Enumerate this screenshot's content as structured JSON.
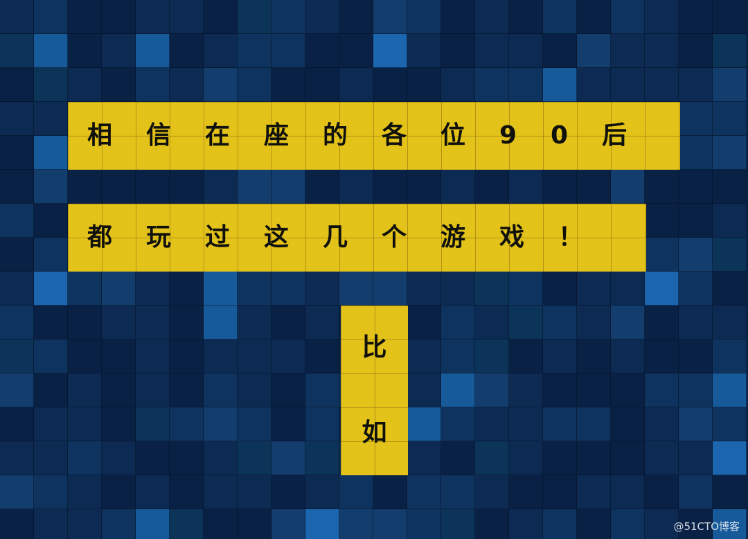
{
  "colors": {
    "background": "#0b2547",
    "band_yellow": "#e3c21a",
    "text": "#10100c",
    "tile_palette": [
      "#0a2146",
      "#0c2a52",
      "#0f335f",
      "#123d6d",
      "#0c3358",
      "#175a9a",
      "#1c66b0"
    ]
  },
  "headline": {
    "line1": "相信在座的各位90后",
    "line2": "都玩过这几个游戏！",
    "line3_char1": "比",
    "line3_char2": "如"
  },
  "watermark": "@51CTO博客"
}
